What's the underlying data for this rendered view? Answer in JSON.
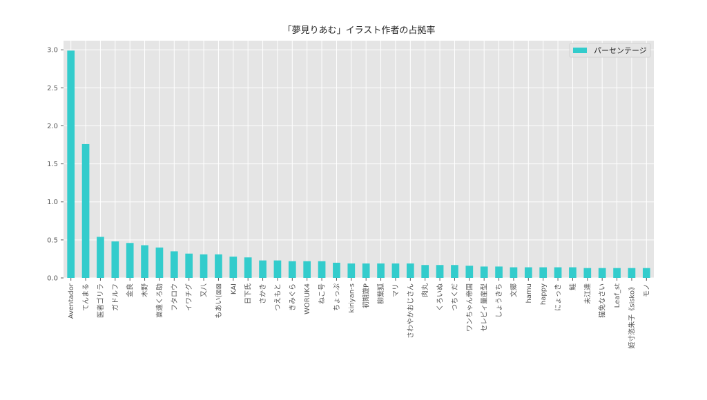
{
  "chart_data": {
    "type": "bar",
    "title": "「夢見りあむ」イラスト作者の占拠率",
    "xlabel": "",
    "ylabel": "",
    "ylim": [
      0,
      3.12
    ],
    "yticks": [
      "0.0",
      "0.5",
      "1.0",
      "1.5",
      "2.0",
      "2.5",
      "3.0"
    ],
    "grid": true,
    "legend_position": "top-right",
    "colors": {
      "bar": "#33CCCC",
      "plot_bg": "#E5E5E5",
      "grid": "#FFFFFF"
    },
    "categories": [
      "Aventador",
      "てんまる",
      "医者ゴリラ",
      "ガドルフ",
      "金良",
      "木野",
      "高遠くろ助",
      "フタロウ",
      "イワチグ",
      "又八",
      "もあい(⊠⊠",
      "KAI",
      "日下氏",
      "さかき",
      "つえもと",
      "きみぐら",
      "WORUK4",
      "ねこ号",
      "ちょっぷ",
      "kiriyan-s",
      "初期遊P",
      "柳葉狐",
      "マリ",
      "さわやかおじさん",
      "肉丸",
      "くろいぬ",
      "つちくだ",
      "ワンちゃん帝国",
      "セレビィ量産型",
      "しょうきち",
      "文郷",
      "hamu",
      "happy",
      "にょっき",
      "鮭",
      "未江達",
      "猫免なさい",
      "Leaf_st",
      "姫寸恣朱子《sisko》",
      "モノ"
    ],
    "series": [
      {
        "name": "パーセンテージ",
        "values": [
          2.99,
          1.76,
          0.54,
          0.48,
          0.46,
          0.43,
          0.4,
          0.35,
          0.32,
          0.31,
          0.31,
          0.28,
          0.27,
          0.23,
          0.23,
          0.22,
          0.22,
          0.22,
          0.2,
          0.19,
          0.19,
          0.19,
          0.19,
          0.19,
          0.17,
          0.17,
          0.17,
          0.16,
          0.15,
          0.15,
          0.14,
          0.14,
          0.14,
          0.14,
          0.14,
          0.13,
          0.13,
          0.13,
          0.13,
          0.13
        ]
      }
    ]
  }
}
